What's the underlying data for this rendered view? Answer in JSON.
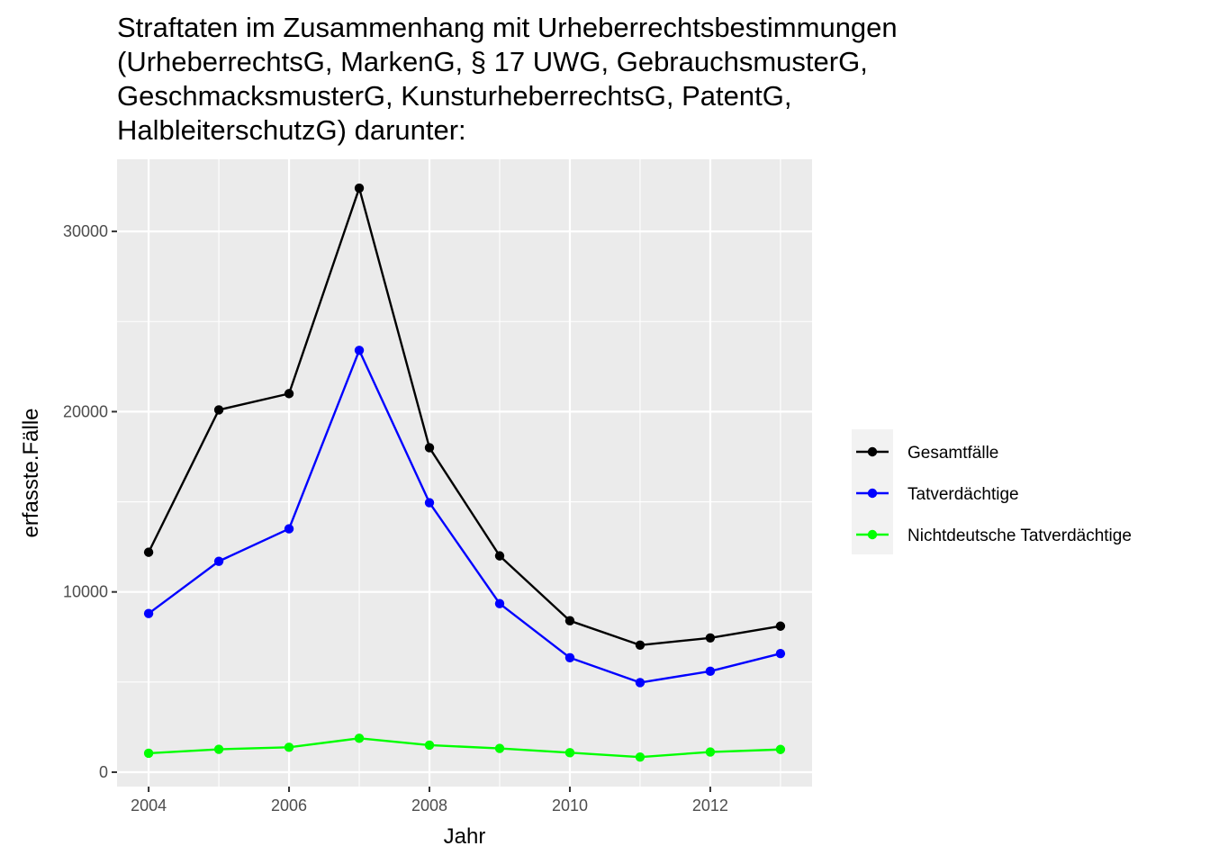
{
  "chart_data": {
    "type": "line",
    "title_lines": [
      "Straftaten im Zusammenhang mit Urheberrechtsbestimmungen",
      "(UrheberrechtsG, MarkenG, § 17 UWG, GebrauchsmusterG,",
      "GeschmacksmusterG, KunsturheberrechtsG, PatentG,",
      "HalbleiterschutzG) darunter:"
    ],
    "xlabel": "Jahr",
    "ylabel": "erfasste.Fälle",
    "x": [
      2004,
      2005,
      2006,
      2007,
      2008,
      2009,
      2010,
      2011,
      2012,
      2013
    ],
    "xlim": [
      2003.55,
      2013.45
    ],
    "ylim": [
      -800,
      34000
    ],
    "x_ticks": [
      2004,
      2006,
      2008,
      2010,
      2012
    ],
    "y_ticks": [
      0,
      10000,
      20000,
      30000
    ],
    "grid": true,
    "background": "#ebebeb",
    "legend_position": "right",
    "series": [
      {
        "name": "Gesamtfälle",
        "color": "#000000",
        "values": [
          12200,
          20100,
          21000,
          32400,
          18000,
          12000,
          8400,
          7050,
          7450,
          8100
        ]
      },
      {
        "name": "Tatverdächtige",
        "color": "#0000ff",
        "values": [
          8800,
          11700,
          13500,
          23400,
          14950,
          9350,
          6350,
          4970,
          5600,
          6580
        ]
      },
      {
        "name": "Nichtdeutsche Tatverdächtige",
        "color": "#00ff00",
        "values": [
          1050,
          1270,
          1380,
          1880,
          1500,
          1320,
          1080,
          840,
          1120,
          1260
        ]
      }
    ]
  }
}
